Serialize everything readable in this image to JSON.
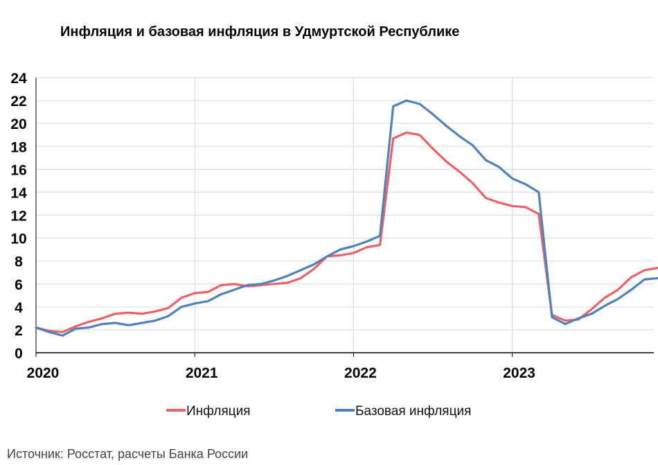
{
  "title": "Инфляция и базовая инфляция в Удмуртской Республике",
  "source": "Источник: Росстат, расчеты Банка России",
  "colors": {
    "inflation": "#ed6166",
    "core": "#4f81bd",
    "grid": "#d9d9d9",
    "axis": "#000000"
  },
  "chart_data": {
    "type": "line",
    "title": "Инфляция и базовая инфляция в Удмуртской Республике",
    "xlabel": "",
    "ylabel": "",
    "ylim": [
      0,
      24
    ],
    "yticks": [
      "0",
      "2",
      "4",
      "6",
      "8",
      "10",
      "12",
      "14",
      "16",
      "18",
      "20",
      "22",
      "24"
    ],
    "x_ticks": [
      "2020",
      "2021",
      "2022",
      "2023"
    ],
    "grid": true,
    "legend_position": "bottom",
    "x": [
      "2020-01",
      "2020-02",
      "2020-03",
      "2020-04",
      "2020-05",
      "2020-06",
      "2020-07",
      "2020-08",
      "2020-09",
      "2020-10",
      "2020-11",
      "2020-12",
      "2021-01",
      "2021-02",
      "2021-03",
      "2021-04",
      "2021-05",
      "2021-06",
      "2021-07",
      "2021-08",
      "2021-09",
      "2021-10",
      "2021-11",
      "2021-12",
      "2022-01",
      "2022-02",
      "2022-03",
      "2022-04",
      "2022-05",
      "2022-06",
      "2022-07",
      "2022-08",
      "2022-09",
      "2022-10",
      "2022-11",
      "2022-12",
      "2023-01",
      "2023-02",
      "2023-03",
      "2023-04",
      "2023-05",
      "2023-06",
      "2023-07",
      "2023-08",
      "2023-09",
      "2023-10",
      "2023-11",
      "2023-12"
    ],
    "series": [
      {
        "name": "Инфляция",
        "values": [
          2.2,
          1.9,
          1.8,
          2.3,
          2.7,
          3.0,
          3.4,
          3.5,
          3.4,
          3.6,
          3.9,
          4.8,
          5.2,
          5.3,
          5.9,
          6.0,
          5.8,
          5.9,
          6.0,
          6.1,
          6.5,
          7.3,
          8.4,
          8.5,
          8.7,
          9.2,
          9.4,
          18.7,
          19.2,
          19.0,
          17.8,
          16.7,
          15.8,
          14.8,
          13.5,
          13.1,
          12.8,
          12.7,
          12.1,
          3.3,
          2.8,
          2.9,
          3.8,
          4.8,
          5.5,
          6.6,
          7.2,
          7.4
        ]
      },
      {
        "name": "Базовая инфляция",
        "values": [
          2.2,
          1.8,
          1.5,
          2.1,
          2.2,
          2.5,
          2.6,
          2.4,
          2.6,
          2.8,
          3.2,
          4.0,
          4.3,
          4.5,
          5.1,
          5.5,
          5.9,
          6.0,
          6.3,
          6.7,
          7.2,
          7.7,
          8.4,
          9.0,
          9.3,
          9.7,
          10.2,
          21.5,
          22.0,
          21.7,
          20.8,
          19.8,
          18.9,
          18.1,
          16.8,
          16.2,
          15.2,
          14.7,
          14.0,
          3.1,
          2.5,
          3.0,
          3.4,
          4.1,
          4.7,
          5.5,
          6.4,
          6.5
        ]
      }
    ]
  }
}
